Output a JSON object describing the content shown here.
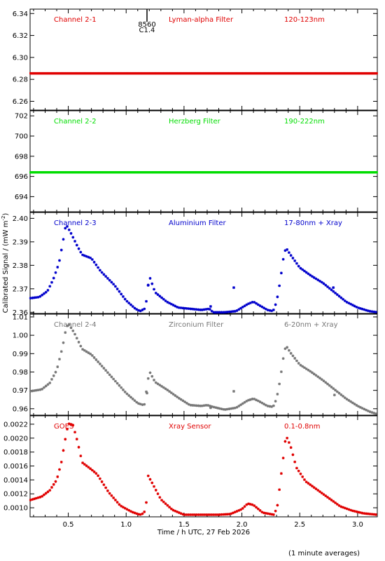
{
  "chart_data": {
    "type": "scatter",
    "xlabel": "Time / h UTC, 27 Feb 2026",
    "ylabel": "Calibrated Signal / (mW m",
    "ylabel_sup": "-2",
    "ylabel_close": ")",
    "footnote": "(1 minute averages)",
    "xlim": [
      0.17,
      3.17
    ],
    "xticks": [
      0.5,
      1.0,
      1.5,
      2.0,
      2.5,
      3.0
    ],
    "xtick_labels": [
      "0.5",
      "1.0",
      "1.5",
      "2.0",
      "2.5",
      "3.0"
    ],
    "flare_marker": {
      "x": 1.18,
      "label_top": "8560",
      "label_bottom": "C1.4"
    },
    "panels": [
      {
        "channel": "Channel 2-1",
        "filter": "Lyman-alpha Filter",
        "band": "120-123nm",
        "color": "#e00000",
        "ylim": [
          6.252,
          6.344
        ],
        "yticks": [
          6.26,
          6.28,
          6.3,
          6.32,
          6.34
        ],
        "ytick_labels": [
          "6.26",
          "6.28",
          "6.30",
          "6.32",
          "6.34"
        ],
        "points": [
          [
            0.17,
            6.2855
          ],
          [
            0.5,
            6.2855
          ],
          [
            1.0,
            6.2855
          ],
          [
            1.5,
            6.2855
          ],
          [
            2.0,
            6.2855
          ],
          [
            2.5,
            6.2855
          ],
          [
            3.0,
            6.2855
          ],
          [
            3.17,
            6.2855
          ]
        ]
      },
      {
        "channel": "Channel 2-2",
        "filter": "Herzberg Filter",
        "band": "190-222nm",
        "color": "#00dd00",
        "ylim": [
          692.5,
          702.5
        ],
        "yticks": [
          694,
          696,
          698,
          700,
          702
        ],
        "ytick_labels": [
          "694",
          "696",
          "698",
          "700",
          "702"
        ],
        "points": [
          [
            0.17,
            696.4
          ],
          [
            0.5,
            696.4
          ],
          [
            1.0,
            696.4
          ],
          [
            1.5,
            696.4
          ],
          [
            2.0,
            696.4
          ],
          [
            2.5,
            696.4
          ],
          [
            3.0,
            696.4
          ],
          [
            3.17,
            696.4
          ]
        ]
      },
      {
        "channel": "Channel 2-3",
        "filter": "Aluminium Filter",
        "band": "17-80nm + Xray",
        "color": "#0000cc",
        "ylim": [
          2.3595,
          2.4025
        ],
        "yticks": [
          2.36,
          2.37,
          2.38,
          2.39,
          2.4
        ],
        "ytick_labels": [
          "2.36",
          "2.37",
          "2.38",
          "2.39",
          "2.40"
        ],
        "points": [
          [
            0.17,
            2.366
          ],
          [
            0.25,
            2.3665
          ],
          [
            0.32,
            2.369
          ],
          [
            0.37,
            2.374
          ],
          [
            0.42,
            2.381
          ],
          [
            0.45,
            2.389
          ],
          [
            0.48,
            2.3975
          ],
          [
            0.52,
            2.394
          ],
          [
            0.58,
            2.388
          ],
          [
            0.62,
            2.3845
          ],
          [
            0.7,
            2.383
          ],
          [
            0.78,
            2.3775
          ],
          [
            0.9,
            2.3715
          ],
          [
            1.0,
            2.365
          ],
          [
            1.08,
            2.3615
          ],
          [
            1.12,
            2.3605
          ],
          [
            1.16,
            2.3615
          ],
          [
            1.17,
            2.363
          ],
          [
            1.2,
            2.3755
          ],
          [
            1.25,
            2.3685
          ],
          [
            1.35,
            2.3645
          ],
          [
            1.45,
            2.362
          ],
          [
            1.55,
            2.3615
          ],
          [
            1.65,
            2.361
          ],
          [
            1.72,
            2.3615
          ],
          [
            1.75,
            2.36
          ],
          [
            1.85,
            2.36
          ],
          [
            1.95,
            2.3605
          ],
          [
            2.05,
            2.3635
          ],
          [
            2.1,
            2.3645
          ],
          [
            2.15,
            2.363
          ],
          [
            2.22,
            2.361
          ],
          [
            2.27,
            2.3605
          ],
          [
            2.3,
            2.3645
          ],
          [
            2.33,
            2.373
          ],
          [
            2.36,
            2.3835
          ],
          [
            2.38,
            2.3875
          ],
          [
            2.42,
            2.3845
          ],
          [
            2.5,
            2.379
          ],
          [
            2.6,
            2.3755
          ],
          [
            2.7,
            2.3725
          ],
          [
            2.8,
            2.3685
          ],
          [
            2.9,
            2.3645
          ],
          [
            3.0,
            2.362
          ],
          [
            3.1,
            2.3605
          ],
          [
            3.17,
            2.36
          ]
        ],
        "outliers": [
          [
            1.19,
            2.3715
          ],
          [
            1.73,
            2.3625
          ],
          [
            1.93,
            2.3705
          ],
          [
            2.79,
            2.3705
          ]
        ]
      },
      {
        "channel": "Channel 2-4",
        "filter": "Zirconium Filter",
        "band": "6-20nm + Xray",
        "color": "#777777",
        "ylim": [
          0.9565,
          1.0115
        ],
        "yticks": [
          0.96,
          0.97,
          0.98,
          0.99,
          1.0,
          1.01
        ],
        "ytick_labels": [
          "0.96",
          "0.97",
          "0.98",
          "0.99",
          "1.00",
          "1.01"
        ],
        "points": [
          [
            0.17,
            0.9695
          ],
          [
            0.27,
            0.9705
          ],
          [
            0.34,
            0.974
          ],
          [
            0.4,
            0.981
          ],
          [
            0.45,
            0.9935
          ],
          [
            0.48,
            1.0035
          ],
          [
            0.5,
            1.0065
          ],
          [
            0.55,
            1.0015
          ],
          [
            0.62,
            0.9925
          ],
          [
            0.7,
            0.9895
          ],
          [
            0.78,
            0.984
          ],
          [
            0.9,
            0.9755
          ],
          [
            1.0,
            0.9685
          ],
          [
            1.1,
            0.963
          ],
          [
            1.15,
            0.962
          ],
          [
            1.16,
            0.9625
          ],
          [
            1.17,
            0.9675
          ],
          [
            1.2,
            0.9805
          ],
          [
            1.25,
            0.9745
          ],
          [
            1.35,
            0.9705
          ],
          [
            1.45,
            0.966
          ],
          [
            1.55,
            0.962
          ],
          [
            1.65,
            0.9615
          ],
          [
            1.7,
            0.962
          ],
          [
            1.75,
            0.961
          ],
          [
            1.85,
            0.9595
          ],
          [
            1.95,
            0.9605
          ],
          [
            2.05,
            0.9645
          ],
          [
            2.1,
            0.9655
          ],
          [
            2.15,
            0.964
          ],
          [
            2.22,
            0.9615
          ],
          [
            2.27,
            0.961
          ],
          [
            2.3,
            0.9655
          ],
          [
            2.33,
            0.9755
          ],
          [
            2.36,
            0.9885
          ],
          [
            2.38,
            0.9945
          ],
          [
            2.42,
            0.9905
          ],
          [
            2.5,
            0.984
          ],
          [
            2.6,
            0.98
          ],
          [
            2.7,
            0.9755
          ],
          [
            2.8,
            0.9705
          ],
          [
            2.9,
            0.9655
          ],
          [
            3.0,
            0.9615
          ],
          [
            3.1,
            0.9585
          ],
          [
            3.17,
            0.957
          ]
        ],
        "outliers": [
          [
            1.18,
            0.9685
          ],
          [
            1.73,
            0.9605
          ],
          [
            1.93,
            0.9695
          ],
          [
            2.8,
            0.9675
          ]
        ]
      },
      {
        "channel": "GOES",
        "filter": "Xray Sensor",
        "band": "0.1-0.8nm",
        "color": "#e00000",
        "ylim": [
          0.00087,
          0.00232
        ],
        "yticks": [
          0.001,
          0.0012,
          0.0014,
          0.0016,
          0.0018,
          0.002,
          0.0022
        ],
        "ytick_labels": [
          "0.0010",
          "0.0012",
          "0.0014",
          "0.0016",
          "0.0018",
          "0.0020",
          "0.0022"
        ],
        "points": [
          [
            0.17,
            0.00111
          ],
          [
            0.27,
            0.00116
          ],
          [
            0.34,
            0.00125
          ],
          [
            0.4,
            0.0014
          ],
          [
            0.44,
            0.00165
          ],
          [
            0.47,
            0.00195
          ],
          [
            0.5,
            0.00221
          ],
          [
            0.54,
            0.00219
          ],
          [
            0.58,
            0.00195
          ],
          [
            0.62,
            0.00165
          ],
          [
            0.7,
            0.00155
          ],
          [
            0.75,
            0.00148
          ],
          [
            0.85,
            0.00122
          ],
          [
            0.95,
            0.00103
          ],
          [
            1.05,
            0.00094
          ],
          [
            1.12,
            0.0009
          ],
          [
            1.15,
            0.00092
          ],
          [
            1.17,
            0.00098
          ],
          [
            1.19,
            0.00146
          ],
          [
            1.22,
            0.00137
          ],
          [
            1.3,
            0.00112
          ],
          [
            1.4,
            0.00097
          ],
          [
            1.5,
            0.0009
          ],
          [
            1.6,
            0.0009
          ],
          [
            1.7,
            0.0009
          ],
          [
            1.8,
            0.0009
          ],
          [
            1.9,
            0.00091
          ],
          [
            2.0,
            0.00098
          ],
          [
            2.05,
            0.00106
          ],
          [
            2.1,
            0.00104
          ],
          [
            2.18,
            0.00093
          ],
          [
            2.28,
            0.0009
          ],
          [
            2.31,
            0.00105
          ],
          [
            2.33,
            0.00135
          ],
          [
            2.36,
            0.00175
          ],
          [
            2.38,
            0.00204
          ],
          [
            2.42,
            0.00189
          ],
          [
            2.47,
            0.00158
          ],
          [
            2.55,
            0.00138
          ],
          [
            2.65,
            0.00126
          ],
          [
            2.75,
            0.00114
          ],
          [
            2.85,
            0.00102
          ],
          [
            2.95,
            0.00096
          ],
          [
            3.05,
            0.00092
          ],
          [
            3.17,
            0.0009
          ]
        ],
        "outliers": []
      }
    ]
  }
}
